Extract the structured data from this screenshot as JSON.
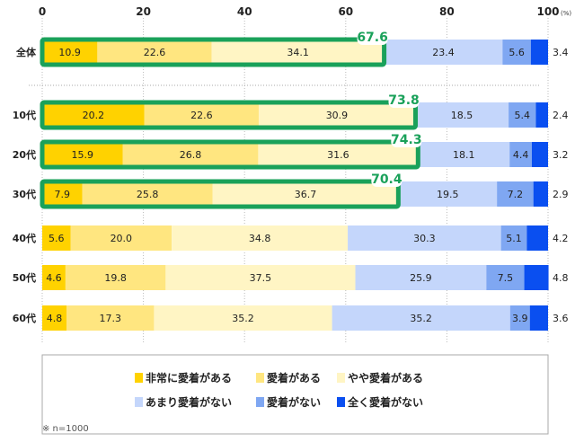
{
  "chart_data": {
    "type": "bar",
    "orientation": "horizontal",
    "stacked": true,
    "xlim": [
      0,
      100
    ],
    "x_ticks": [
      "0",
      "20",
      "40",
      "60",
      "80",
      "100"
    ],
    "unit_label": "(%)",
    "grid": "dotted vertical",
    "legend_placement": "bottom",
    "categories": [
      "全体",
      "10代",
      "20代",
      "30代",
      "40代",
      "50代",
      "60代"
    ],
    "series": [
      {
        "name": "非常に愛着がある",
        "color": "#ffd200",
        "values": [
          10.9,
          20.2,
          15.9,
          7.9,
          5.6,
          4.6,
          4.8
        ]
      },
      {
        "name": "愛着がある",
        "color": "#ffe680",
        "values": [
          22.6,
          22.6,
          26.8,
          25.8,
          20.0,
          19.8,
          17.3
        ]
      },
      {
        "name": "やや愛着がある",
        "color": "#fff5c4",
        "values": [
          34.1,
          30.9,
          31.6,
          36.7,
          34.8,
          37.5,
          35.2
        ]
      },
      {
        "name": "あまり愛着がない",
        "color": "#c4d6fb",
        "values": [
          23.4,
          18.5,
          18.1,
          19.5,
          30.3,
          25.9,
          35.2
        ]
      },
      {
        "name": "愛着がない",
        "color": "#7fa7f2",
        "values": [
          5.6,
          5.4,
          4.4,
          7.2,
          5.1,
          7.5,
          3.9
        ]
      },
      {
        "name": "全く愛着がない",
        "color": "#0a4ff0",
        "values": [
          3.4,
          2.4,
          3.2,
          2.9,
          4.2,
          4.8,
          3.6
        ]
      }
    ],
    "highlight_totals": [
      67.6,
      73.8,
      74.3,
      70.4,
      null,
      null,
      null
    ],
    "highlight_color": "#1aa15a",
    "note": "※ n=1000"
  }
}
